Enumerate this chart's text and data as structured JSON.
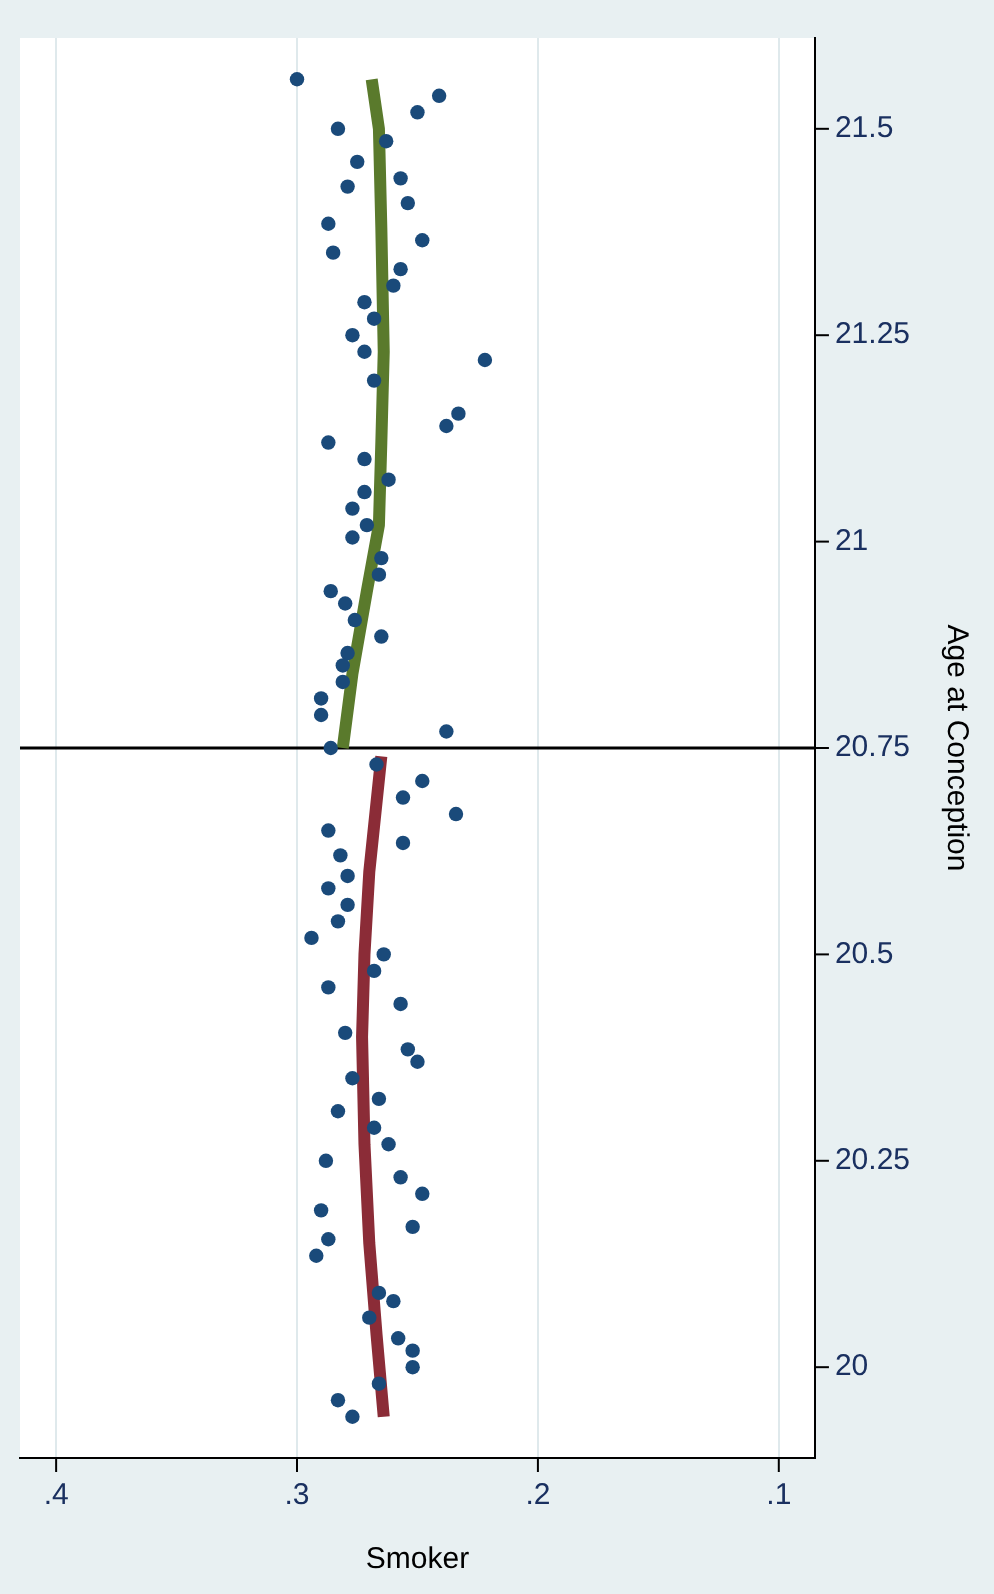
{
  "chart_data": {
    "type": "scatter",
    "xlabel": "Smoker",
    "ylabel": "Age at Conception",
    "xlim": [
      0.415,
      0.085
    ],
    "ylim": [
      19.89,
      21.61
    ],
    "xticks": [
      {
        "value": 0.4,
        "label": ".4"
      },
      {
        "value": 0.3,
        "label": ".3"
      },
      {
        "value": 0.2,
        "label": ".2"
      },
      {
        "value": 0.1,
        "label": ".1"
      }
    ],
    "yticks": [
      20,
      20.25,
      20.5,
      20.75,
      21,
      21.25,
      21.5
    ],
    "grid": "x",
    "legend": false,
    "ref_lines": [
      {
        "axis": "y",
        "value": 20.75,
        "color": "#000000",
        "line_style": "solid"
      }
    ],
    "series": [
      {
        "type": "scatter",
        "color": "#1a4a7a",
        "marker": "circle",
        "x": [
          0.3,
          0.241,
          0.25,
          0.283,
          0.263,
          0.275,
          0.257,
          0.279,
          0.254,
          0.287,
          0.248,
          0.285,
          0.257,
          0.26,
          0.272,
          0.268,
          0.277,
          0.272,
          0.222,
          0.268,
          0.233,
          0.238,
          0.287,
          0.272,
          0.262,
          0.272,
          0.277,
          0.271,
          0.277,
          0.265,
          0.266,
          0.286,
          0.28,
          0.276,
          0.265,
          0.279,
          0.281,
          0.281,
          0.29,
          0.29,
          0.238,
          0.286,
          0.267,
          0.248,
          0.256,
          0.234,
          0.287,
          0.256,
          0.282,
          0.279,
          0.287,
          0.279,
          0.283,
          0.294,
          0.264,
          0.268,
          0.287,
          0.257,
          0.28,
          0.254,
          0.25,
          0.277,
          0.266,
          0.283,
          0.268,
          0.262,
          0.288,
          0.257,
          0.248,
          0.29,
          0.252,
          0.287,
          0.292,
          0.266,
          0.26,
          0.27,
          0.258,
          0.252,
          0.252,
          0.266,
          0.283,
          0.277
        ],
        "values": [
          21.56,
          21.54,
          21.52,
          21.5,
          21.485,
          21.46,
          21.44,
          21.43,
          21.41,
          21.385,
          21.365,
          21.35,
          21.33,
          21.31,
          21.29,
          21.27,
          21.25,
          21.23,
          21.22,
          21.195,
          21.155,
          21.14,
          21.12,
          21.1,
          21.075,
          21.06,
          21.04,
          21.02,
          21.005,
          20.98,
          20.96,
          20.94,
          20.925,
          20.905,
          20.885,
          20.865,
          20.85,
          20.83,
          20.81,
          20.79,
          20.77,
          20.75,
          20.73,
          20.71,
          20.69,
          20.67,
          20.65,
          20.635,
          20.62,
          20.595,
          20.58,
          20.56,
          20.54,
          20.52,
          20.5,
          20.48,
          20.46,
          20.44,
          20.405,
          20.385,
          20.37,
          20.35,
          20.325,
          20.31,
          20.29,
          20.27,
          20.25,
          20.23,
          20.21,
          20.19,
          20.17,
          20.155,
          20.135,
          20.09,
          20.08,
          20.06,
          20.035,
          20.02,
          20.0,
          19.98,
          19.96,
          19.94
        ]
      },
      {
        "type": "line",
        "color": "#8b2c37",
        "marker": "none",
        "x": [
          0.264,
          0.267,
          0.27,
          0.272,
          0.273,
          0.272,
          0.27,
          0.265
        ],
        "values": [
          19.94,
          20.04,
          20.15,
          20.27,
          20.4,
          20.5,
          20.6,
          20.74
        ]
      },
      {
        "type": "line",
        "color": "#5a7a2c",
        "marker": "none",
        "x": [
          0.281,
          0.277,
          0.271,
          0.266,
          0.265,
          0.264,
          0.265,
          0.266,
          0.269
        ],
        "values": [
          20.75,
          20.84,
          20.94,
          21.02,
          21.12,
          21.23,
          21.38,
          21.5,
          21.56
        ]
      }
    ]
  }
}
